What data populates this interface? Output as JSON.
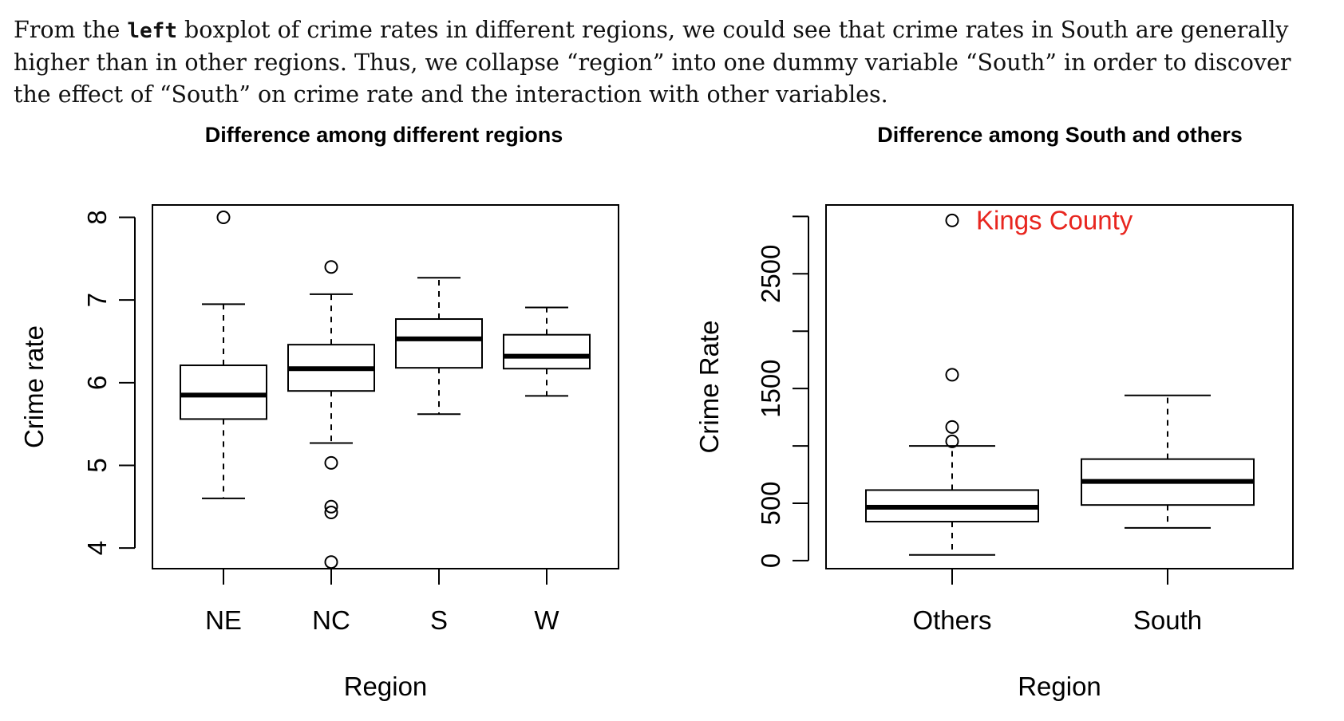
{
  "paragraph": {
    "part1": "From the ",
    "code": "left",
    "part2": " boxplot of crime rates in different regions, we could see that crime rates in South are generally higher than in other regions. Thus, we collapse “region” into one dummy variable “South” in order to discover the effect of “South” on crime rate and the interaction with other variables."
  },
  "colors": {
    "annotation": "#e8261f",
    "ink": "#000000"
  },
  "chart_data": [
    {
      "type": "boxplot",
      "title": "Difference among different regions",
      "xlabel": "Region",
      "ylabel": "Crime rate",
      "ylim": [
        3.75,
        8.15
      ],
      "yticks": [
        4,
        5,
        6,
        7,
        8
      ],
      "categories": [
        "NE",
        "NC",
        "S",
        "W"
      ],
      "boxes": [
        {
          "name": "NE",
          "whisker_low": 4.6,
          "q1": 5.56,
          "median": 5.85,
          "q3": 6.21,
          "whisker_high": 6.95,
          "outliers": [
            8.0
          ]
        },
        {
          "name": "NC",
          "whisker_low": 5.27,
          "q1": 5.9,
          "median": 6.17,
          "q3": 6.46,
          "whisker_high": 7.07,
          "outliers": [
            7.4,
            5.03,
            4.5,
            4.43,
            3.83
          ]
        },
        {
          "name": "S",
          "whisker_low": 5.62,
          "q1": 6.18,
          "median": 6.53,
          "q3": 6.77,
          "whisker_high": 7.27,
          "outliers": []
        },
        {
          "name": "W",
          "whisker_low": 5.84,
          "q1": 6.17,
          "median": 6.32,
          "q3": 6.58,
          "whisker_high": 6.91,
          "outliers": []
        }
      ],
      "annotations": []
    },
    {
      "type": "boxplot",
      "title": "Difference among South and others",
      "xlabel": "Region",
      "ylabel": "Crime Rate",
      "ylim": [
        -70,
        3100
      ],
      "yticks": [
        0,
        500,
        1000,
        1500,
        2000,
        2500,
        3000
      ],
      "ytick_labels": [
        "0",
        "500",
        "",
        "1500",
        "",
        "2500",
        ""
      ],
      "categories": [
        "Others",
        "South"
      ],
      "boxes": [
        {
          "name": "Others",
          "whisker_low": 50,
          "q1": 340,
          "median": 465,
          "q3": 615,
          "whisker_high": 1000,
          "outliers": [
            1620,
            1165,
            1040,
            2965
          ]
        },
        {
          "name": "South",
          "whisker_low": 285,
          "q1": 485,
          "median": 690,
          "q3": 885,
          "whisker_high": 1440,
          "outliers": []
        }
      ],
      "annotations": [
        {
          "text": "Kings County",
          "x": "Others",
          "y": 2965
        }
      ]
    }
  ]
}
